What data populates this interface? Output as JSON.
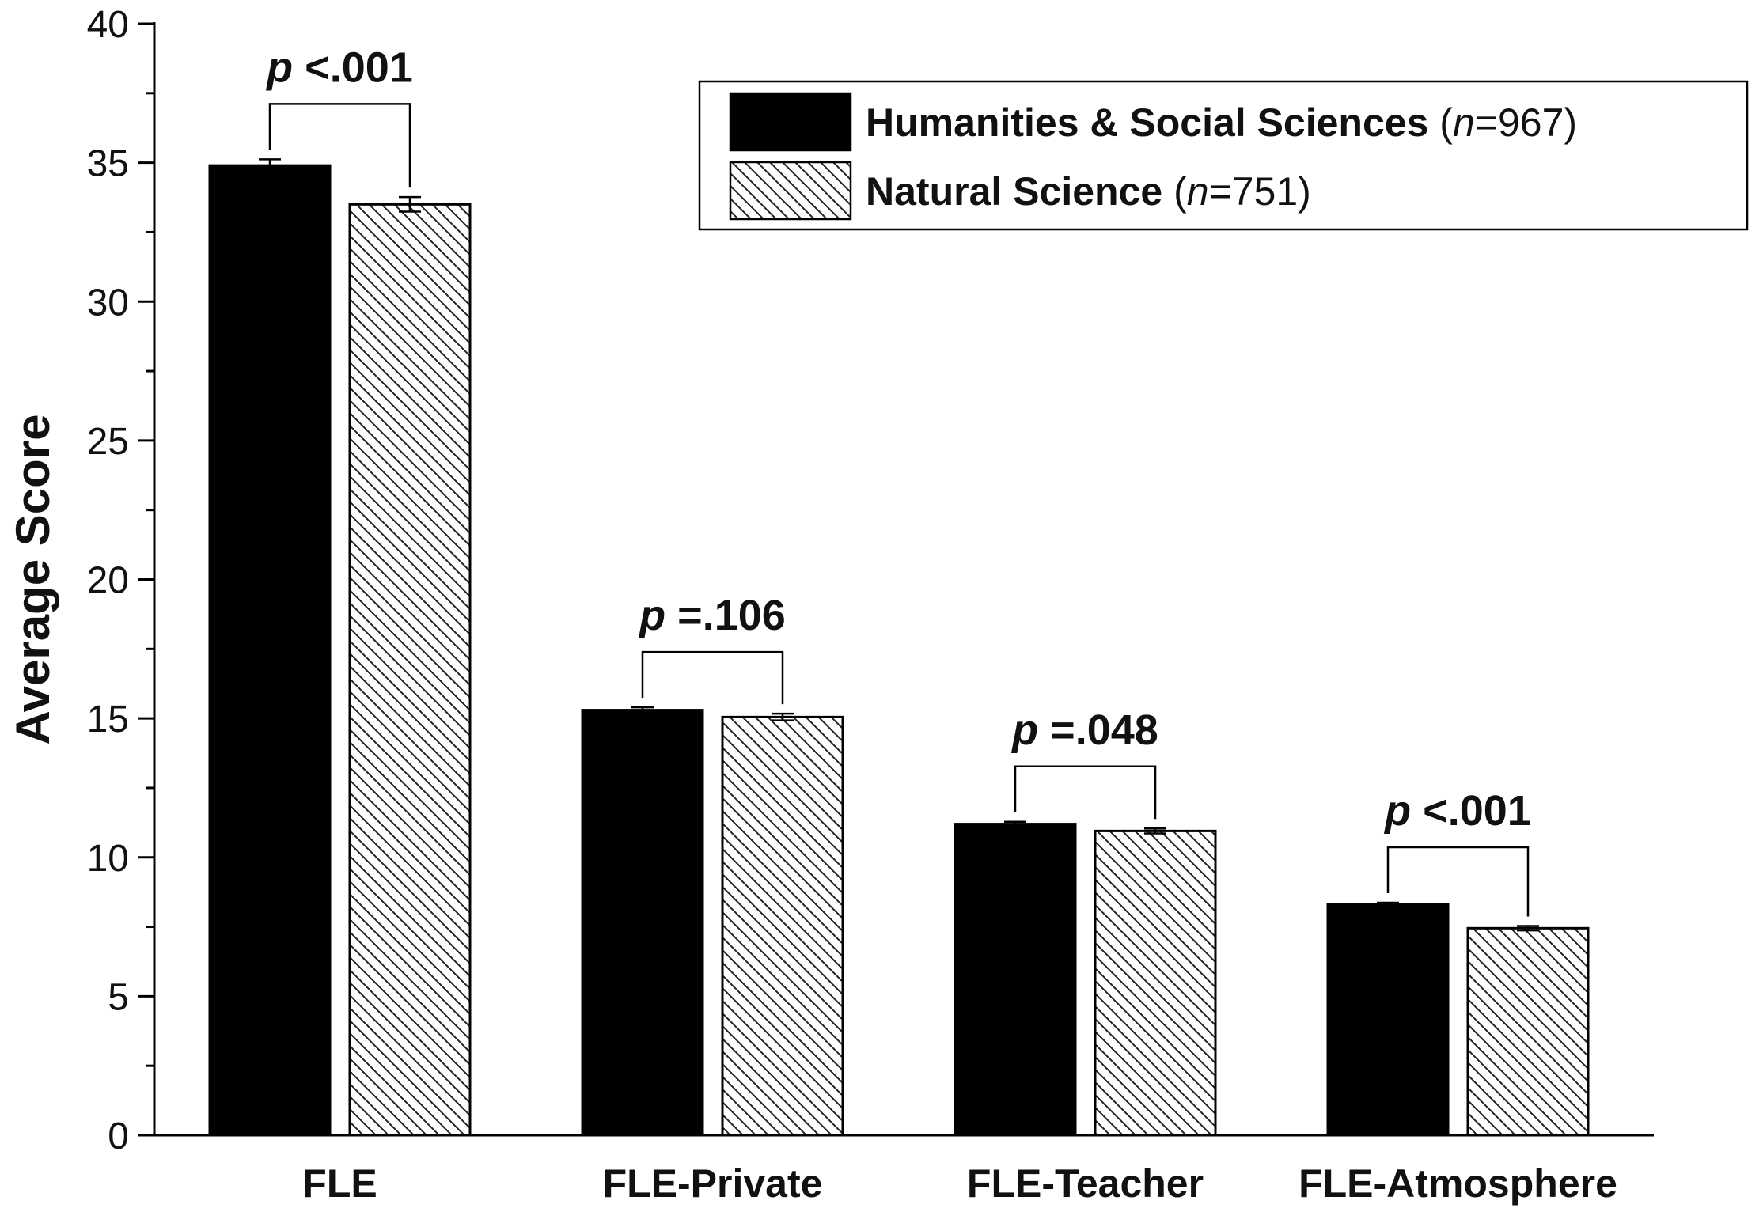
{
  "chart_data": {
    "type": "bar",
    "title": "",
    "xlabel": "",
    "ylabel": "Average Score",
    "ylim": [
      0,
      40
    ],
    "yticks": [
      0,
      5,
      10,
      15,
      20,
      25,
      30,
      35,
      40
    ],
    "grid": false,
    "legend_position": "top-right",
    "categories": [
      "FLE",
      "FLE-Private",
      "FLE-Teacher",
      "FLE-Atmosphere"
    ],
    "series": [
      {
        "name": "Humanities & Social Sciences",
        "n_label": "n",
        "n_value": "=967)",
        "n_prefix": " (",
        "pattern": "solid",
        "color": "#000000",
        "values": [
          34.9,
          15.3,
          11.2,
          8.3
        ],
        "errors": [
          0.22,
          0.1,
          0.08,
          0.07
        ]
      },
      {
        "name": "Natural Science",
        "n_label": "n",
        "n_value": "=751)",
        "n_prefix": " (",
        "pattern": "hatch",
        "color": "#ffffff",
        "values": [
          33.5,
          15.05,
          10.95,
          7.45
        ],
        "errors": [
          0.26,
          0.12,
          0.09,
          0.08
        ]
      }
    ],
    "annotations": [
      {
        "category": 0,
        "p": "p",
        "text": " <.001"
      },
      {
        "category": 1,
        "p": "p",
        "text": " =.106"
      },
      {
        "category": 2,
        "p": "p",
        "text": " =.048"
      },
      {
        "category": 3,
        "p": "p",
        "text": " <.001"
      }
    ]
  }
}
